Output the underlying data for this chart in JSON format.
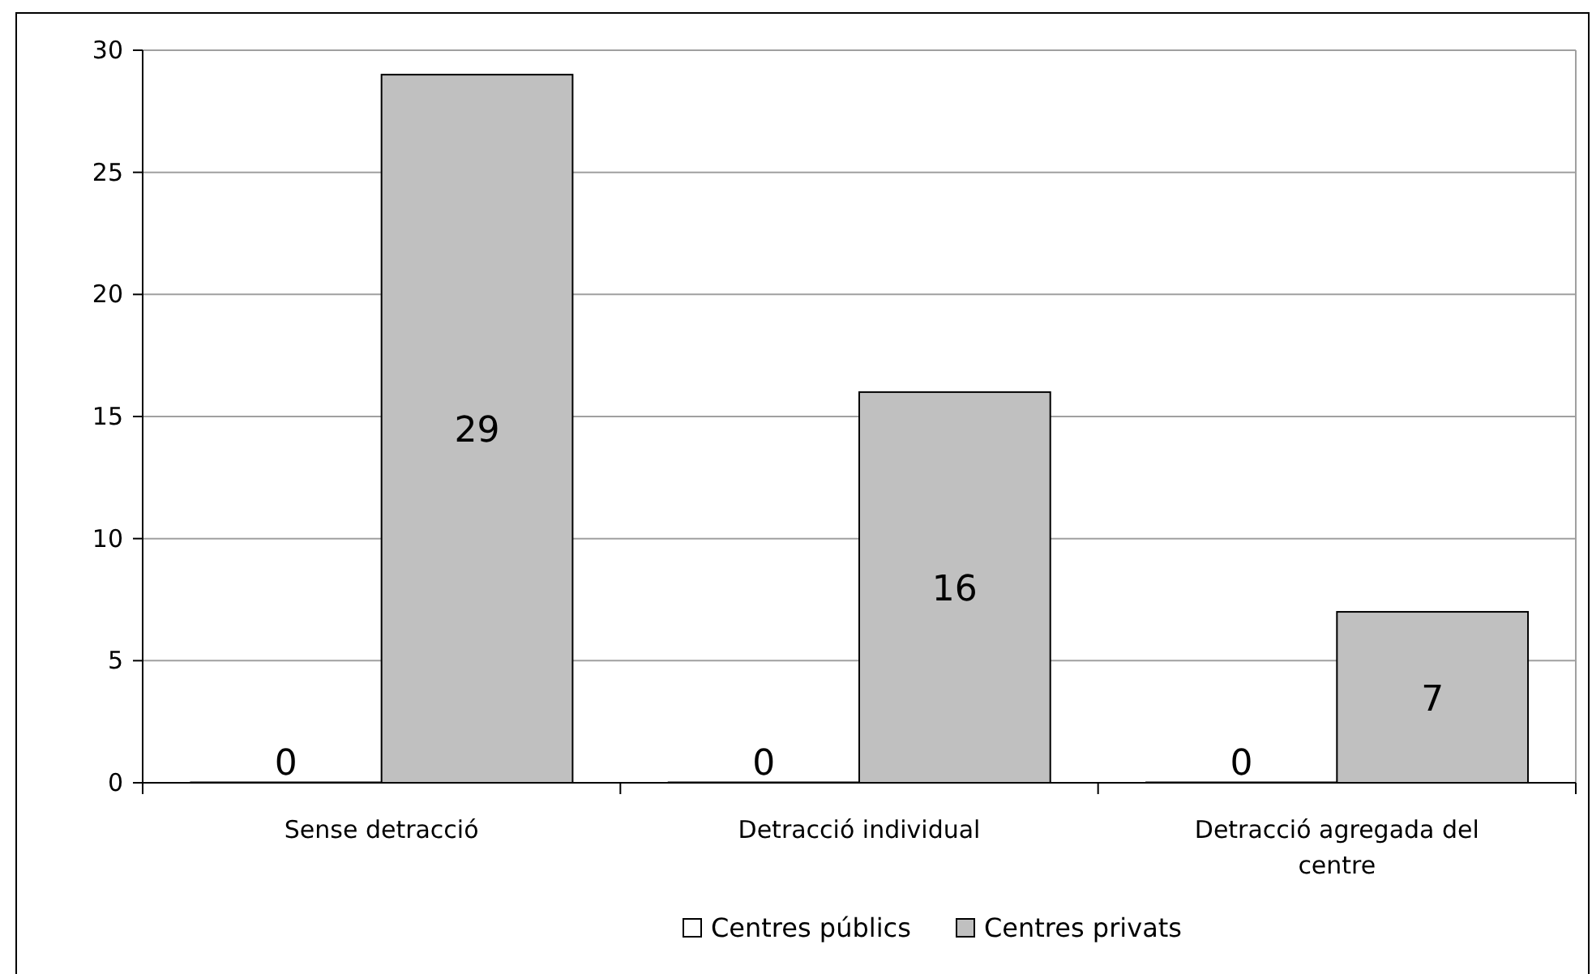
{
  "chart_data": {
    "type": "bar",
    "categories": [
      "Sense detracció",
      "Detracció individual",
      "Detracció agregada del centre"
    ],
    "series": [
      {
        "name": "Centres públics",
        "color": "#ffffff",
        "values": [
          0,
          0,
          0
        ]
      },
      {
        "name": "Centres privats",
        "color": "#c0c0c0",
        "values": [
          29,
          16,
          7
        ]
      }
    ],
    "ylim": [
      0,
      30
    ],
    "yticks": [
      0,
      5,
      10,
      15,
      20,
      25,
      30
    ],
    "grid": "y",
    "legend": "bottom",
    "data_labels": true
  }
}
